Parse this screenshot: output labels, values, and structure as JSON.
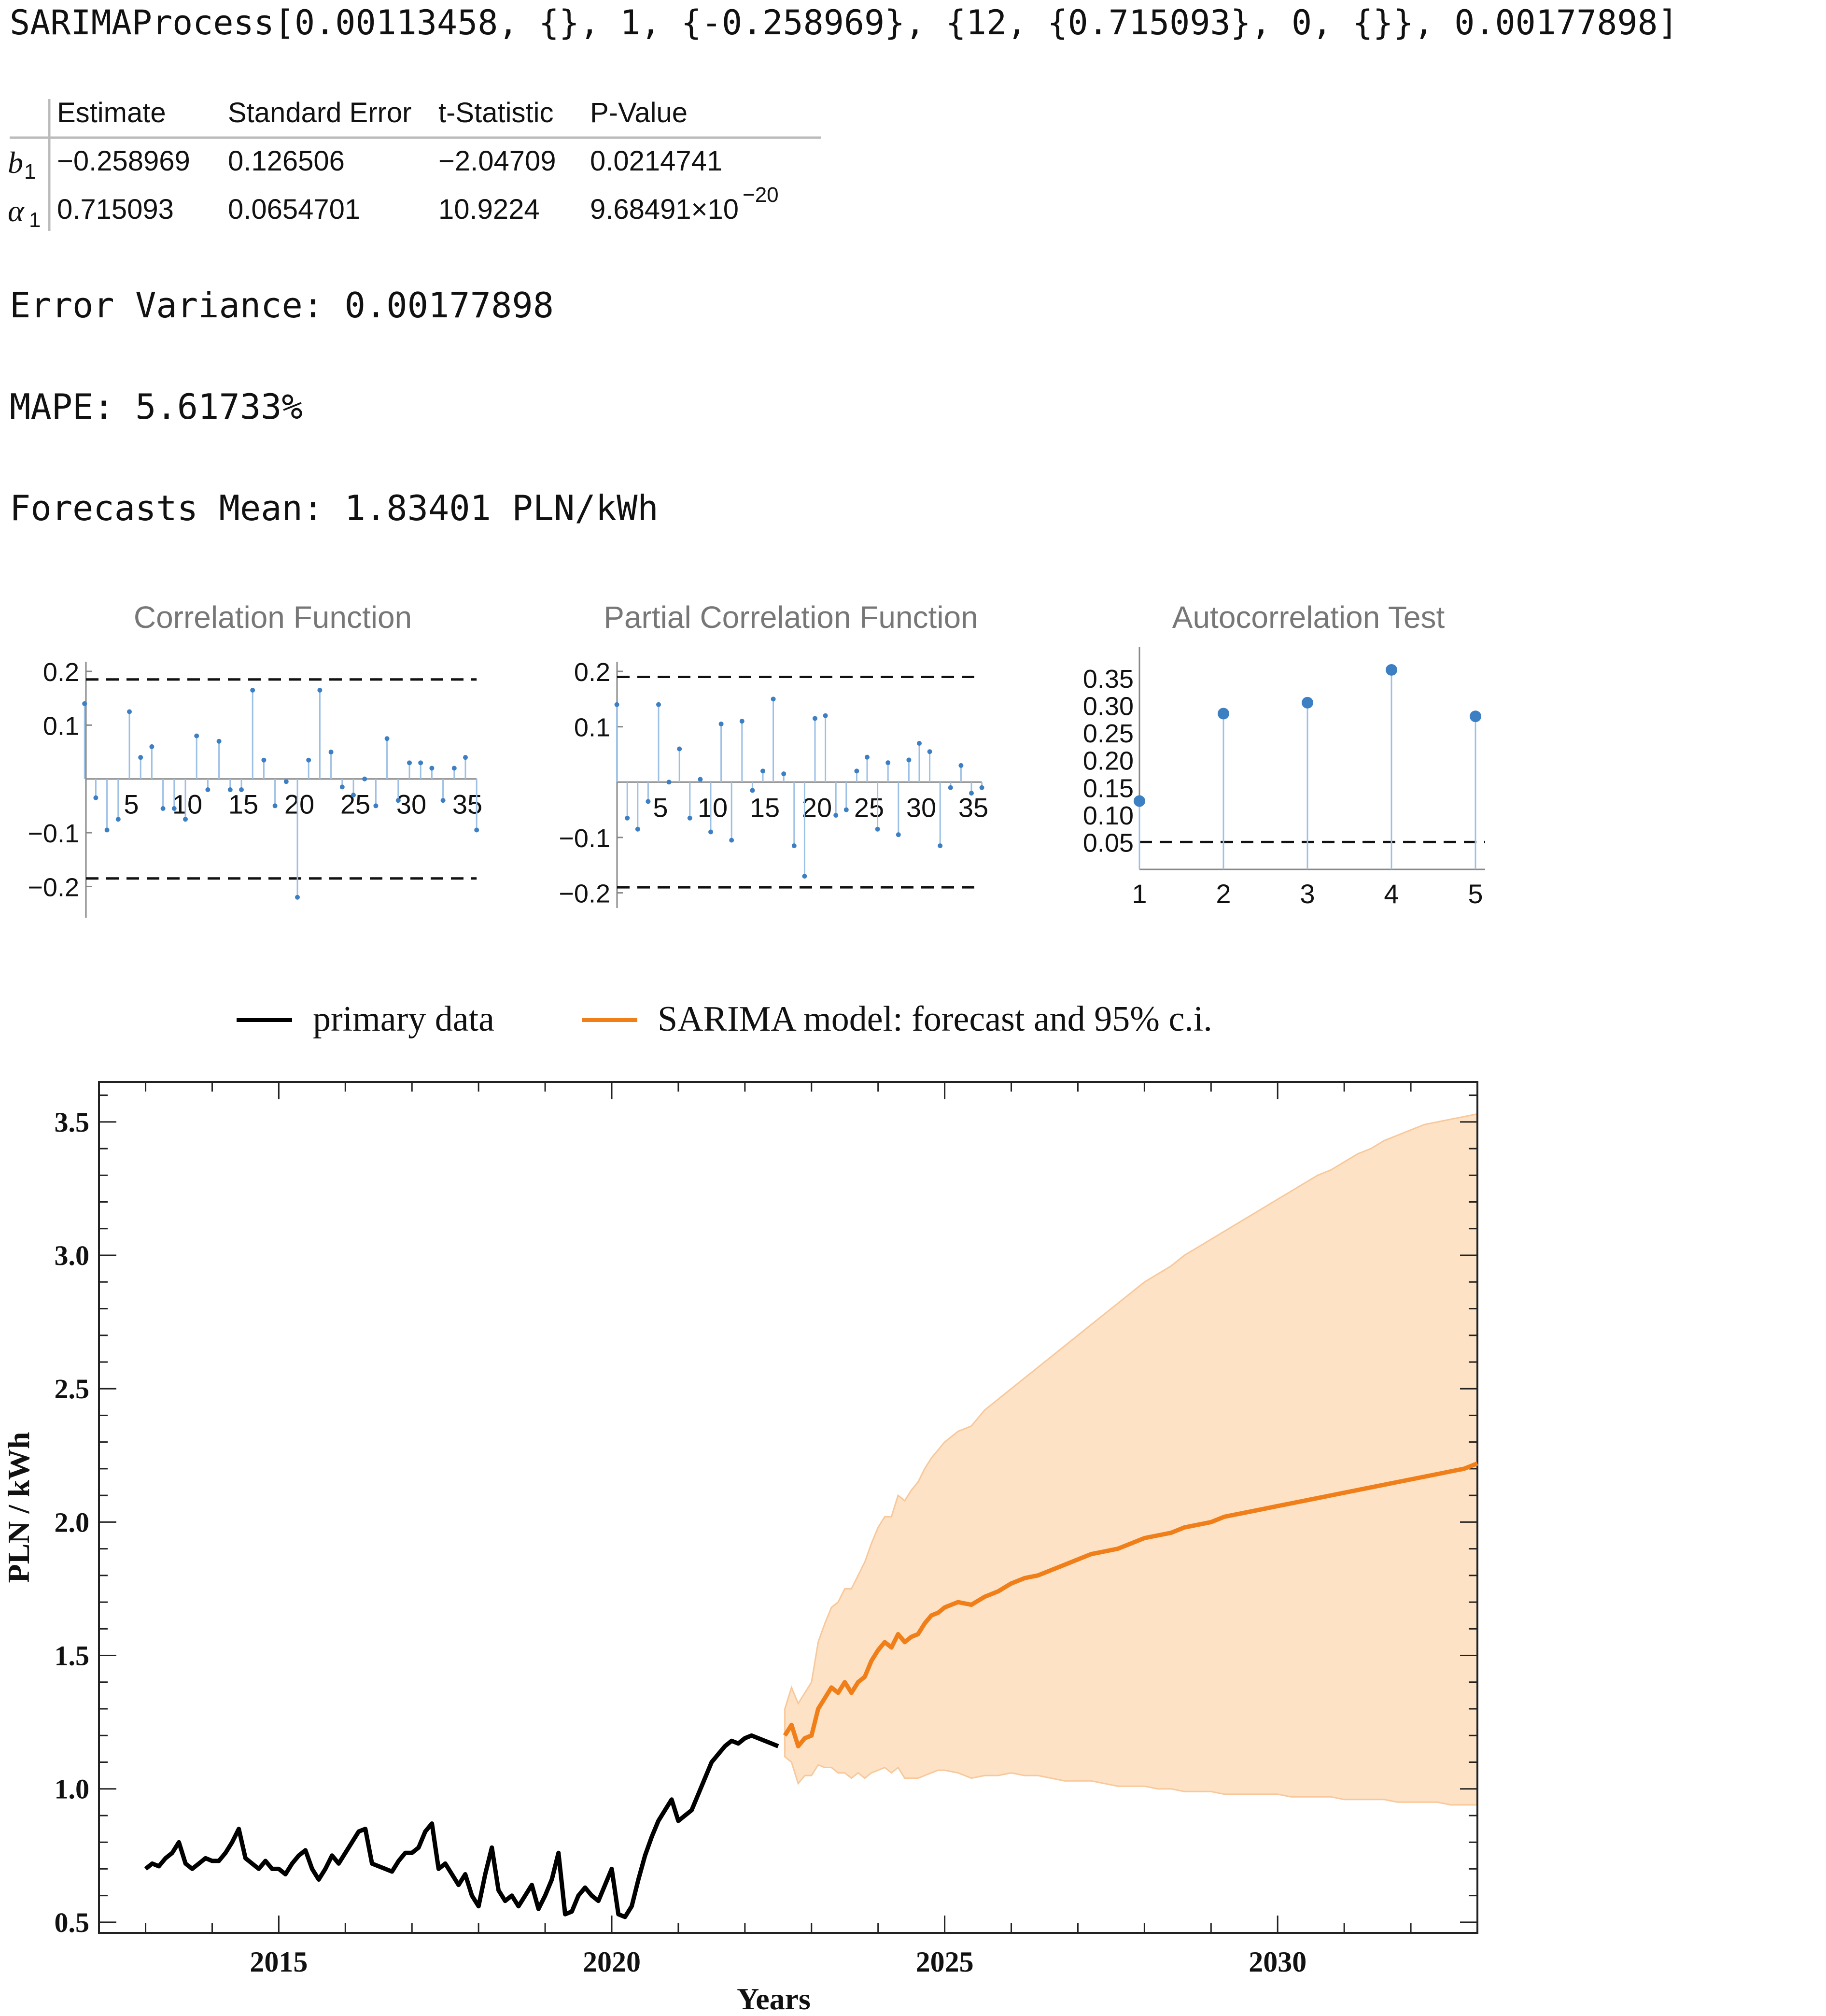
{
  "process_line": "SARIMAProcess[0.00113458, {}, 1, {-0.258969}, {12, {0.715093}, 0, {}}, 0.00177898]",
  "stats_table": {
    "headers": [
      "",
      "Estimate",
      "Standard Error",
      "t-Statistic",
      "P-Value"
    ],
    "rows": [
      {
        "param": "b",
        "sub": "1",
        "estimate": "−0.258969",
        "stderr": "0.126506",
        "tstat": "−2.04709",
        "pvalue": "0.0214741",
        "pvalue_exp": ""
      },
      {
        "param": "α",
        "sub": "1",
        "estimate": "0.715093",
        "stderr": "0.0654701",
        "tstat": "10.9224",
        "pvalue": "9.68491×10",
        "pvalue_exp": "−20"
      }
    ]
  },
  "error_variance": "Error Variance: 0.00177898",
  "mape": "MAPE: 5.61733%",
  "forecast_mean": "Forecasts Mean: 1.83401 PLN/kWh",
  "colors": {
    "stem": "#9cc0e6",
    "point": "#3d7fc3",
    "primary": "#000000",
    "forecast": "#f07f1a",
    "band": "#fde2c6"
  },
  "chart_data": [
    {
      "type": "scatter",
      "title": "Correlation Function",
      "lags": [
        1,
        2,
        3,
        4,
        5,
        6,
        7,
        8,
        9,
        10,
        11,
        12,
        13,
        14,
        15,
        16,
        17,
        18,
        19,
        20,
        21,
        22,
        23,
        24,
        25,
        26,
        27,
        28,
        29,
        30,
        31,
        32,
        33,
        34,
        35,
        36
      ],
      "values": [
        0.14,
        -0.035,
        -0.095,
        -0.075,
        0.125,
        0.04,
        0.06,
        -0.055,
        -0.055,
        -0.075,
        0.08,
        -0.02,
        0.07,
        -0.02,
        -0.02,
        0.165,
        0.035,
        -0.05,
        -0.005,
        -0.22,
        0.035,
        0.165,
        0.05,
        -0.015,
        -0.03,
        0.0,
        -0.05,
        0.075,
        -0.04,
        0.03,
        0.03,
        0.02,
        -0.04,
        0.02,
        0.04,
        -0.095
      ],
      "band": 0.185,
      "ylim": [
        -0.24,
        0.2
      ],
      "yticks": [
        "0.2",
        "0.1",
        "−0.1",
        "−0.2"
      ],
      "xticks": [
        "5",
        "10",
        "15",
        "20",
        "25",
        "30",
        "35"
      ]
    },
    {
      "type": "scatter",
      "title": "Partial Correlation Function",
      "lags": [
        1,
        2,
        3,
        4,
        5,
        6,
        7,
        8,
        9,
        10,
        11,
        12,
        13,
        14,
        15,
        16,
        17,
        18,
        19,
        20,
        21,
        22,
        23,
        24,
        25,
        26,
        27,
        28,
        29,
        30,
        31,
        32,
        33,
        34,
        35,
        36
      ],
      "values": [
        0.14,
        -0.065,
        -0.085,
        -0.035,
        0.14,
        0.0,
        0.06,
        -0.065,
        0.005,
        -0.09,
        0.105,
        -0.105,
        0.11,
        -0.015,
        0.02,
        0.15,
        0.015,
        -0.115,
        -0.17,
        0.115,
        0.12,
        -0.06,
        -0.05,
        0.02,
        0.045,
        -0.085,
        0.035,
        -0.095,
        0.04,
        0.07,
        0.055,
        -0.115,
        -0.01,
        0.03,
        -0.02,
        -0.01
      ],
      "band": 0.19,
      "ylim": [
        -0.21,
        0.2
      ],
      "yticks": [
        "0.2",
        "0.1",
        "−0.1",
        "−0.2"
      ],
      "xticks": [
        "5",
        "10",
        "15",
        "20",
        "25",
        "30",
        "35"
      ]
    },
    {
      "type": "scatter",
      "title": "Autocorrelation Test",
      "x": [
        1,
        2,
        3,
        4,
        5
      ],
      "values": [
        0.125,
        0.285,
        0.305,
        0.365,
        0.28
      ],
      "threshold": 0.05,
      "ylim": [
        0.0,
        0.38
      ],
      "yticks": [
        "0.35",
        "0.30",
        "0.25",
        "0.20",
        "0.15",
        "0.10",
        "0.05"
      ],
      "xticks": [
        "1",
        "2",
        "3",
        "4",
        "5"
      ]
    },
    {
      "type": "line",
      "xlabel": "Years",
      "ylabel": "PLN / kWh",
      "xlim": [
        2012.3,
        2033.0
      ],
      "ylim": [
        0.46,
        3.65
      ],
      "xticks": [
        "2015",
        "2020",
        "2025",
        "2030"
      ],
      "yticks": [
        "0.5",
        "1.0",
        "1.5",
        "2.0",
        "2.5",
        "3.0",
        "3.5"
      ],
      "legend_position": "top-center",
      "series": [
        {
          "name": "primary data",
          "x": [
            2013.0,
            2013.1,
            2013.2,
            2013.3,
            2013.4,
            2013.5,
            2013.6,
            2013.7,
            2013.8,
            2013.9,
            2014.0,
            2014.1,
            2014.2,
            2014.3,
            2014.4,
            2014.5,
            2014.6,
            2014.7,
            2014.8,
            2014.9,
            2015.0,
            2015.1,
            2015.2,
            2015.3,
            2015.4,
            2015.5,
            2015.6,
            2015.7,
            2015.8,
            2015.9,
            2016.0,
            2016.1,
            2016.2,
            2016.3,
            2016.4,
            2016.5,
            2016.6,
            2016.7,
            2016.8,
            2016.9,
            2017.0,
            2017.1,
            2017.2,
            2017.3,
            2017.4,
            2017.5,
            2017.6,
            2017.7,
            2017.8,
            2017.9,
            2018.0,
            2018.1,
            2018.2,
            2018.3,
            2018.4,
            2018.5,
            2018.6,
            2018.7,
            2018.8,
            2018.9,
            2019.0,
            2019.1,
            2019.2,
            2019.3,
            2019.4,
            2019.5,
            2019.6,
            2019.7,
            2019.8,
            2019.9,
            2020.0,
            2020.1,
            2020.2,
            2020.3,
            2020.4,
            2020.5,
            2020.6,
            2020.7,
            2020.8,
            2020.9,
            2021.0,
            2021.1,
            2021.2,
            2021.3,
            2021.4,
            2021.5,
            2021.6,
            2021.7,
            2021.8,
            2021.9,
            2022.0,
            2022.1,
            2022.2,
            2022.3,
            2022.4,
            2022.5
          ],
          "y": [
            0.7,
            0.72,
            0.71,
            0.74,
            0.76,
            0.8,
            0.72,
            0.7,
            0.72,
            0.74,
            0.73,
            0.73,
            0.76,
            0.8,
            0.85,
            0.74,
            0.72,
            0.7,
            0.73,
            0.7,
            0.7,
            0.68,
            0.72,
            0.75,
            0.77,
            0.7,
            0.66,
            0.7,
            0.75,
            0.72,
            0.76,
            0.8,
            0.84,
            0.85,
            0.72,
            0.71,
            0.7,
            0.69,
            0.73,
            0.76,
            0.76,
            0.78,
            0.84,
            0.87,
            0.7,
            0.72,
            0.68,
            0.64,
            0.68,
            0.6,
            0.56,
            0.68,
            0.78,
            0.62,
            0.58,
            0.6,
            0.56,
            0.6,
            0.64,
            0.55,
            0.6,
            0.66,
            0.76,
            0.53,
            0.54,
            0.6,
            0.63,
            0.6,
            0.58,
            0.64,
            0.7,
            0.53,
            0.52,
            0.56,
            0.66,
            0.75,
            0.82,
            0.88,
            0.92,
            0.96,
            0.88,
            0.9,
            0.92,
            0.98,
            1.04,
            1.1,
            1.13,
            1.16,
            1.18,
            1.17,
            1.19,
            1.2,
            1.19,
            1.18,
            1.17,
            1.16
          ]
        },
        {
          "name": "SARIMA model: forecast and 95% c.i.",
          "x": [
            2022.6,
            2022.7,
            2022.8,
            2022.9,
            2023.0,
            2023.1,
            2023.2,
            2023.3,
            2023.4,
            2023.5,
            2023.6,
            2023.7,
            2023.8,
            2023.9,
            2024.0,
            2024.1,
            2024.2,
            2024.3,
            2024.4,
            2024.5,
            2024.6,
            2024.7,
            2024.8,
            2024.9,
            2025.0,
            2025.2,
            2025.4,
            2025.6,
            2025.8,
            2026.0,
            2026.2,
            2026.4,
            2026.6,
            2026.8,
            2027.0,
            2027.2,
            2027.4,
            2027.6,
            2027.8,
            2028.0,
            2028.2,
            2028.4,
            2028.6,
            2028.8,
            2029.0,
            2029.2,
            2029.4,
            2029.6,
            2029.8,
            2030.0,
            2030.2,
            2030.4,
            2030.6,
            2030.8,
            2031.0,
            2031.2,
            2031.4,
            2031.6,
            2031.8,
            2032.0,
            2032.2,
            2032.4,
            2032.6,
            2032.8,
            2033.0
          ],
          "y": [
            1.2,
            1.24,
            1.16,
            1.19,
            1.2,
            1.3,
            1.34,
            1.38,
            1.36,
            1.4,
            1.36,
            1.4,
            1.42,
            1.48,
            1.52,
            1.55,
            1.53,
            1.58,
            1.55,
            1.57,
            1.58,
            1.62,
            1.65,
            1.66,
            1.68,
            1.7,
            1.69,
            1.72,
            1.74,
            1.77,
            1.79,
            1.8,
            1.82,
            1.84,
            1.86,
            1.88,
            1.89,
            1.9,
            1.92,
            1.94,
            1.95,
            1.96,
            1.98,
            1.99,
            2.0,
            2.02,
            2.03,
            2.04,
            2.05,
            2.06,
            2.07,
            2.08,
            2.09,
            2.1,
            2.11,
            2.12,
            2.13,
            2.14,
            2.15,
            2.16,
            2.17,
            2.18,
            2.19,
            2.2,
            2.22
          ],
          "lower": [
            1.12,
            1.1,
            1.02,
            1.05,
            1.05,
            1.09,
            1.08,
            1.08,
            1.06,
            1.06,
            1.04,
            1.06,
            1.04,
            1.06,
            1.07,
            1.08,
            1.06,
            1.08,
            1.04,
            1.04,
            1.04,
            1.05,
            1.06,
            1.07,
            1.07,
            1.06,
            1.04,
            1.05,
            1.05,
            1.06,
            1.05,
            1.05,
            1.04,
            1.03,
            1.03,
            1.03,
            1.02,
            1.01,
            1.01,
            1.01,
            1.0,
            1.0,
            0.99,
            0.99,
            0.99,
            0.98,
            0.98,
            0.98,
            0.98,
            0.98,
            0.97,
            0.97,
            0.97,
            0.97,
            0.96,
            0.96,
            0.96,
            0.96,
            0.95,
            0.95,
            0.95,
            0.95,
            0.94,
            0.94,
            0.94
          ],
          "upper": [
            1.3,
            1.38,
            1.32,
            1.36,
            1.4,
            1.55,
            1.62,
            1.68,
            1.7,
            1.75,
            1.75,
            1.8,
            1.85,
            1.92,
            1.98,
            2.02,
            2.02,
            2.1,
            2.08,
            2.12,
            2.15,
            2.2,
            2.24,
            2.27,
            2.3,
            2.34,
            2.36,
            2.42,
            2.46,
            2.5,
            2.54,
            2.58,
            2.62,
            2.66,
            2.7,
            2.74,
            2.78,
            2.82,
            2.86,
            2.9,
            2.93,
            2.96,
            3.0,
            3.03,
            3.06,
            3.09,
            3.12,
            3.15,
            3.18,
            3.21,
            3.24,
            3.27,
            3.3,
            3.32,
            3.35,
            3.38,
            3.4,
            3.43,
            3.45,
            3.47,
            3.49,
            3.5,
            3.51,
            3.52,
            3.53
          ]
        }
      ]
    }
  ]
}
